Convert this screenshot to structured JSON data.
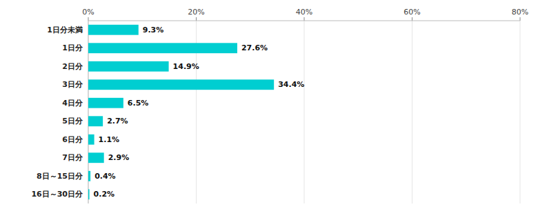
{
  "chart_data": {
    "type": "bar",
    "orientation": "horizontal",
    "categories": [
      "1日分未満",
      "1日分",
      "2日分",
      "3日分",
      "4日分",
      "5日分",
      "6日分",
      "7日分",
      "8日～15日分",
      "16日～30日分"
    ],
    "values": [
      9.3,
      27.6,
      14.9,
      34.4,
      6.5,
      2.7,
      1.1,
      2.9,
      0.4,
      0.2
    ],
    "value_labels": [
      "9.3%",
      "27.6%",
      "14.9%",
      "34.4%",
      "6.5%",
      "2.7%",
      "1.1%",
      "2.9%",
      "0.4%",
      "0.2%"
    ],
    "data_labels": true,
    "color": "#00CED1",
    "xlim": [
      0,
      80
    ],
    "xticks": [
      {
        "value": 0,
        "label": "0%"
      },
      {
        "value": 20,
        "label": "20%"
      },
      {
        "value": 40,
        "label": "40%"
      },
      {
        "value": 60,
        "label": "60%"
      },
      {
        "value": 80,
        "label": "80%"
      }
    ],
    "grid": true
  }
}
